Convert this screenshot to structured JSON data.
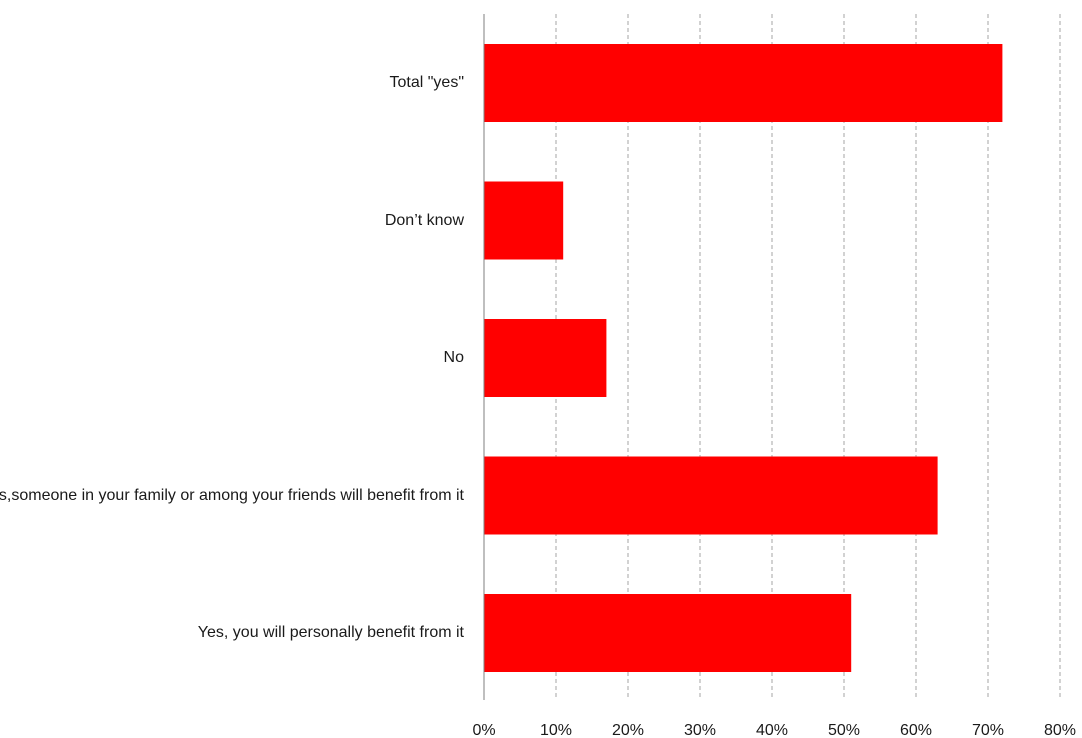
{
  "chart_data": {
    "type": "bar",
    "orientation": "horizontal",
    "categories": [
      "Total \"yes\"",
      "Don’t know",
      "No",
      "Yes,someone in your family or among your friends will benefit from it",
      "Yes, you will personally benefit from it"
    ],
    "values": [
      72,
      11,
      17,
      63,
      51
    ],
    "unit": "%",
    "xlim": [
      0,
      80
    ],
    "x_ticks": [
      "0%",
      "10%",
      "20%",
      "30%",
      "40%",
      "50%",
      "60%",
      "70%",
      "80%"
    ],
    "grid": "vertical dashed",
    "legend": "none",
    "title": "",
    "xlabel": "",
    "ylabel": ""
  },
  "colors": {
    "bar": "#ff0000",
    "grid": "#a6a6a6",
    "axis": "#7f7f7f"
  }
}
